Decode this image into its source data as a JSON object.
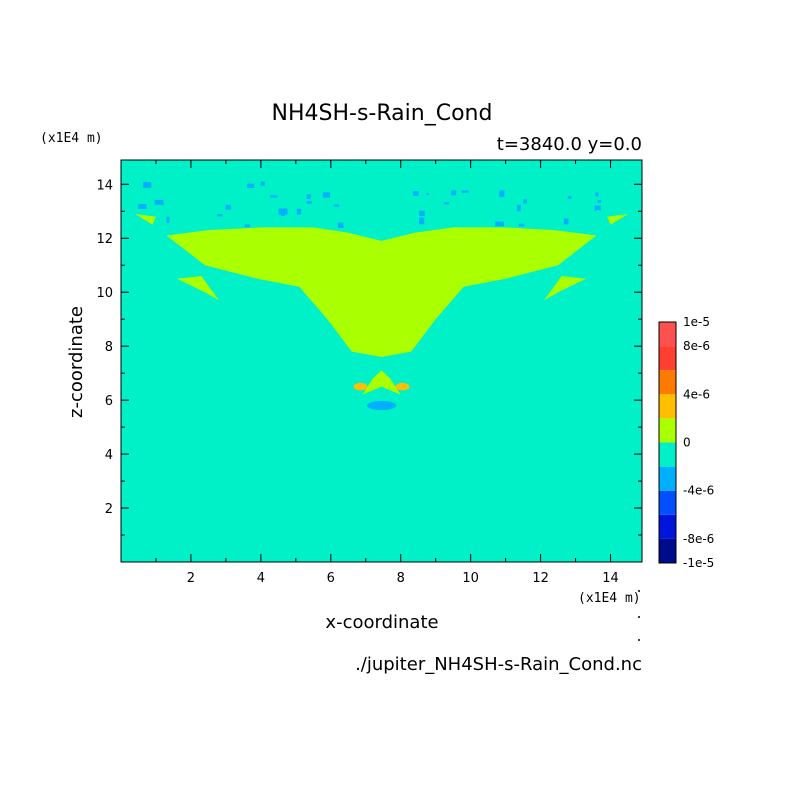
{
  "chart_data": {
    "type": "heatmap",
    "title": "NH4SH-s-Rain_Cond",
    "subtitle": "t=3840.0 y=0.0",
    "xlabel": "x-coordinate",
    "ylabel": "z-coordinate",
    "x_unit": "(x1E4 m)",
    "y_unit": "(x1E4 m)",
    "xlim": [
      0,
      14.9
    ],
    "ylim": [
      0,
      14.9
    ],
    "xticks": [
      2,
      4,
      6,
      8,
      10,
      12,
      14
    ],
    "xtick_labels": [
      "2",
      "4",
      "6",
      "8",
      "10",
      "12",
      "14"
    ],
    "yticks": [
      2,
      4,
      6,
      8,
      10,
      12,
      14
    ],
    "ytick_labels": [
      "2",
      "4",
      "6",
      "8",
      "10",
      "12",
      "14"
    ],
    "background_level": 0,
    "regions": [
      {
        "value": -2e-06,
        "color": "#00f0c8",
        "polygon": [
          [
            0,
            7.0
          ],
          [
            14.9,
            7.0
          ],
          [
            14.9,
            12.6
          ],
          [
            14.0,
            12.9
          ],
          [
            13.0,
            13.0
          ],
          [
            12.0,
            13.1
          ],
          [
            11.0,
            13.4
          ],
          [
            10.0,
            13.7
          ],
          [
            9.0,
            13.8
          ],
          [
            7.45,
            13.4
          ],
          [
            6.0,
            13.8
          ],
          [
            5.0,
            13.6
          ],
          [
            4.0,
            13.3
          ],
          [
            3.0,
            13.1
          ],
          [
            2.0,
            12.9
          ],
          [
            1.0,
            12.6
          ],
          [
            0,
            12.2
          ]
        ]
      },
      {
        "value": 0,
        "color": "#aaff00",
        "polygon": [
          [
            1.3,
            12.1
          ],
          [
            2.5,
            12.3
          ],
          [
            4.0,
            12.4
          ],
          [
            5.5,
            12.4
          ],
          [
            6.5,
            12.2
          ],
          [
            7.45,
            11.9
          ],
          [
            8.4,
            12.2
          ],
          [
            9.5,
            12.4
          ],
          [
            11.0,
            12.4
          ],
          [
            12.4,
            12.3
          ],
          [
            13.6,
            12.1
          ],
          [
            12.5,
            11.0
          ],
          [
            11.0,
            10.5
          ],
          [
            9.8,
            10.2
          ],
          [
            9.0,
            9.0
          ],
          [
            8.3,
            7.8
          ],
          [
            7.45,
            7.6
          ],
          [
            6.6,
            7.8
          ],
          [
            5.9,
            9.0
          ],
          [
            5.1,
            10.2
          ],
          [
            3.9,
            10.5
          ],
          [
            2.4,
            11.0
          ]
        ]
      },
      {
        "value": -2e-06,
        "color": "#00f0c8",
        "polygon": [
          [
            6.3,
            7.0
          ],
          [
            6.5,
            6.4
          ],
          [
            6.9,
            5.9
          ],
          [
            7.2,
            5.3
          ],
          [
            7.45,
            5.2
          ],
          [
            7.7,
            5.3
          ],
          [
            8.0,
            5.9
          ],
          [
            8.4,
            6.4
          ],
          [
            8.6,
            7.0
          ]
        ]
      },
      {
        "value": -2e-06,
        "color": "#00f0c8",
        "polygon": [
          [
            5.6,
            7.0
          ],
          [
            5.6,
            6.7
          ],
          [
            6.3,
            6.4
          ],
          [
            6.3,
            7.0
          ]
        ]
      },
      {
        "value": -2e-06,
        "color": "#00f0c8",
        "polygon": [
          [
            8.6,
            7.0
          ],
          [
            8.6,
            6.4
          ],
          [
            9.3,
            6.7
          ],
          [
            9.3,
            7.0
          ]
        ]
      },
      {
        "value": 0,
        "color": "#aaff00",
        "polygon": [
          [
            6.9,
            6.2
          ],
          [
            7.2,
            6.8
          ],
          [
            7.45,
            7.1
          ],
          [
            7.7,
            6.8
          ],
          [
            8.0,
            6.2
          ],
          [
            7.45,
            6.5
          ]
        ]
      },
      {
        "value": 5e-06,
        "color": "#ffbf00",
        "ellipse": [
          6.85,
          6.5,
          0.2,
          0.14
        ]
      },
      {
        "value": 5e-06,
        "color": "#ffbf00",
        "ellipse": [
          8.05,
          6.5,
          0.2,
          0.14
        ]
      },
      {
        "value": -3e-06,
        "color": "#00b0ff",
        "ellipse": [
          7.45,
          5.8,
          0.42,
          0.17
        ]
      },
      {
        "value": 0,
        "color": "#aaff00",
        "polygon": [
          [
            1.6,
            10.5
          ],
          [
            2.4,
            10.0
          ],
          [
            2.8,
            9.7
          ],
          [
            2.3,
            10.6
          ]
        ]
      },
      {
        "value": 0,
        "color": "#aaff00",
        "polygon": [
          [
            13.3,
            10.5
          ],
          [
            12.5,
            10.0
          ],
          [
            12.1,
            9.7
          ],
          [
            12.6,
            10.6
          ]
        ]
      },
      {
        "value": 0,
        "color": "#aaff00",
        "polygon": [
          [
            0.4,
            12.9
          ],
          [
            0.9,
            12.5
          ],
          [
            1.0,
            12.8
          ]
        ]
      },
      {
        "value": 0,
        "color": "#aaff00",
        "polygon": [
          [
            14.5,
            12.9
          ],
          [
            14.0,
            12.5
          ],
          [
            13.9,
            12.8
          ]
        ]
      }
    ],
    "colorbar": {
      "levels": [
        -1e-05,
        -8e-06,
        -6e-06,
        -4e-06,
        -2e-06,
        0,
        2e-06,
        4e-06,
        6e-06,
        8e-06,
        1e-05
      ],
      "colors": [
        "#000a8c",
        "#0014dc",
        "#0050ff",
        "#00b0ff",
        "#00f0c8",
        "#aaff00",
        "#ffbf00",
        "#ff7a00",
        "#ff4030",
        "#ff5050"
      ],
      "labels": [
        {
          "level": 1e-05,
          "text": "1e-5"
        },
        {
          "level": 8e-06,
          "text": "8e-6"
        },
        {
          "level": 4e-06,
          "text": "4e-6"
        },
        {
          "level": 0,
          "text": "0"
        },
        {
          "level": -4e-06,
          "text": "-4e-6"
        },
        {
          "level": -8e-06,
          "text": "-8e-6"
        },
        {
          "level": -1e-05,
          "text": "-1e-5"
        }
      ]
    },
    "grid": false,
    "legend": "colorbar-right"
  },
  "footer": {
    "filename": "./jupiter_NH4SH-s-Rain_Cond.nc"
  }
}
